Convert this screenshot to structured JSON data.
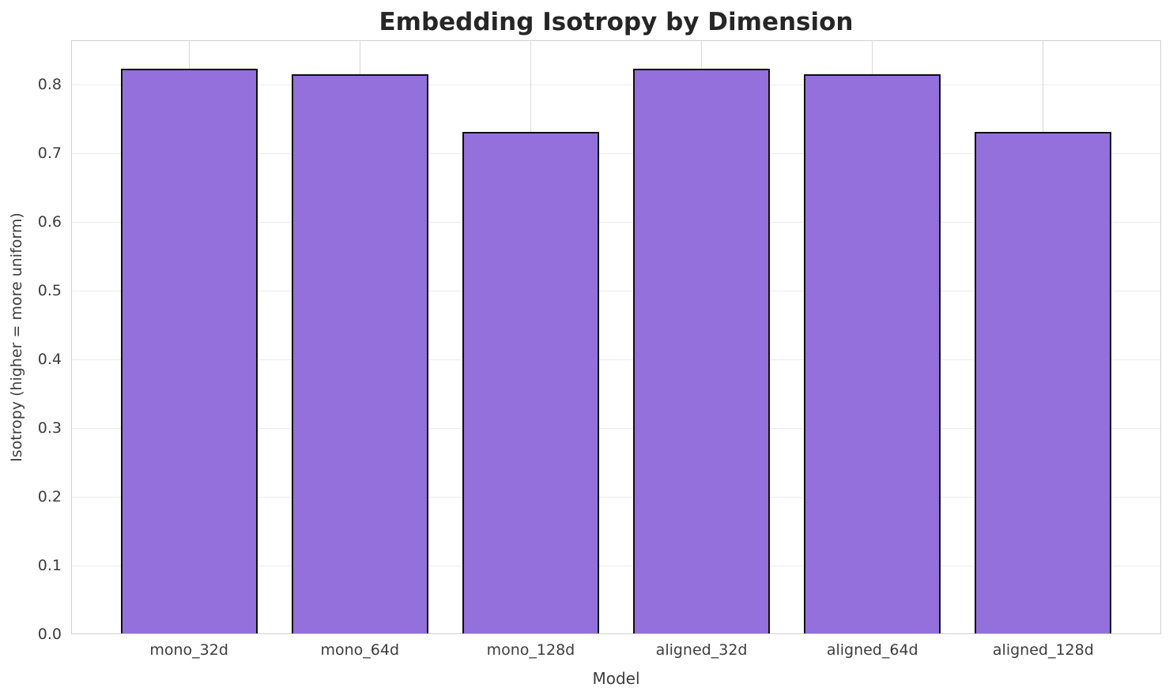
{
  "chart_data": {
    "type": "bar",
    "title": "Embedding Isotropy by Dimension",
    "xlabel": "Model",
    "ylabel": "Isotropy (higher = more uniform)",
    "categories": [
      "mono_32d",
      "mono_64d",
      "mono_128d",
      "aligned_32d",
      "aligned_64d",
      "aligned_128d"
    ],
    "values": [
      0.823,
      0.815,
      0.731,
      0.823,
      0.815,
      0.731
    ],
    "ylim": [
      0,
      0.864
    ],
    "yticks": [
      "0.0",
      "0.1",
      "0.2",
      "0.3",
      "0.4",
      "0.5",
      "0.6",
      "0.7",
      "0.8"
    ],
    "bar_width_fraction": 0.8,
    "grid": true,
    "legend_position": "none",
    "colors": {
      "bar_fill": "#9370DB",
      "bar_edge": "#0d0d0d",
      "grid_horizontal": "#ececec",
      "grid_vertical": "#d9d9d9",
      "frame": "#d0d0d0",
      "title_text": "#262626",
      "axis_text": "#3d3d3d",
      "background": "#ffffff"
    }
  }
}
